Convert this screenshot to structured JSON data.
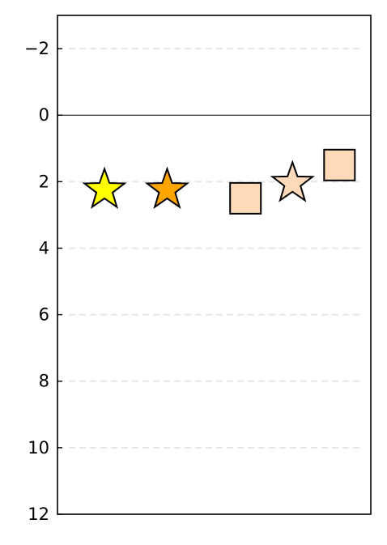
{
  "chart_data": {
    "type": "scatter",
    "title": "",
    "xlabel": "",
    "ylabel": "",
    "xlim": [
      0,
      5
    ],
    "ylim": [
      12,
      -3
    ],
    "y_inverted": true,
    "yticks": [
      -2,
      0,
      2,
      4,
      6,
      8,
      10,
      12
    ],
    "ytick_labels": [
      "−2",
      "0",
      "2",
      "4",
      "6",
      "8",
      "10",
      "12"
    ],
    "grid": "horizontal dashed",
    "zero_line": true,
    "legend": "none",
    "points": [
      {
        "x": 0.75,
        "y": 2.2,
        "marker": "star",
        "color": "#ffff00"
      },
      {
        "x": 1.75,
        "y": 2.2,
        "marker": "star",
        "color": "#ffa500"
      },
      {
        "x": 3.0,
        "y": 2.5,
        "marker": "square",
        "color": "#ffdab9"
      },
      {
        "x": 3.75,
        "y": 2.0,
        "marker": "star",
        "color": "#ffdab9"
      },
      {
        "x": 4.5,
        "y": 1.5,
        "marker": "square",
        "color": "#ffdab9"
      }
    ]
  }
}
